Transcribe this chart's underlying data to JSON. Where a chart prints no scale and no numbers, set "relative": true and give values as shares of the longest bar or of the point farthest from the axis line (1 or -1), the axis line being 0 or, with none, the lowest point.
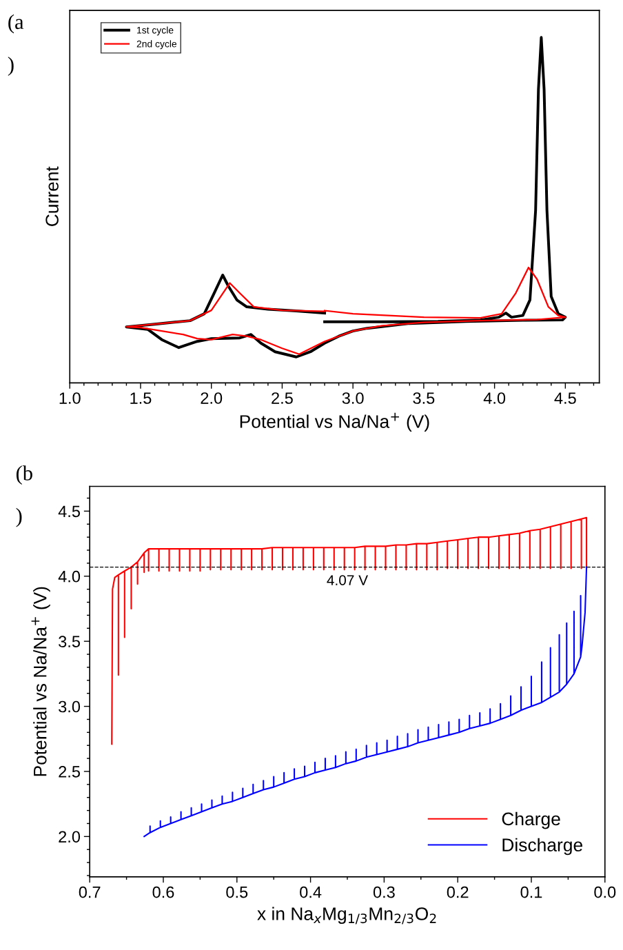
{
  "chart_data": [
    {
      "type": "line",
      "relative": true,
      "xlabel": "Potential vs Na/Na$^{+}$ (V)",
      "ylabel": "Current",
      "annotations": [
        "(a\n)"
      ],
      "xlim": [
        1.0,
        4.74
      ],
      "xticks": [
        {
          "value": 1,
          "label": "1.0"
        },
        1.5,
        {
          "value": 2,
          "label": "2.0"
        },
        2.5,
        {
          "value": 3,
          "label": "3.0"
        },
        3.5,
        {
          "value": 4,
          "label": "4.0"
        },
        4.5
      ],
      "legend": "top left",
      "grid": false,
      "series": [
        {
          "name": "1st cycle",
          "color": "#000000",
          "x": [
            2.8,
            3.2,
            3.6,
            3.9,
            4.03,
            4.08,
            4.12,
            4.2,
            4.25,
            4.29,
            4.31,
            4.33,
            4.35,
            4.37,
            4.4,
            4.45,
            4.5,
            4.48,
            4.2,
            3.8,
            3.4,
            3.1,
            3.0,
            2.9,
            2.8,
            2.7,
            2.6,
            2.45,
            2.35,
            2.28,
            2.2,
            2.0,
            1.9,
            1.77,
            1.65,
            1.55,
            1.4,
            1.6,
            1.85,
            1.95,
            2.02,
            2.08,
            2.12,
            2.18,
            2.25,
            2.4,
            2.6,
            2.8
          ],
          "values": [
            0.177,
            0.177,
            0.178,
            0.182,
            0.19,
            0.202,
            0.19,
            0.195,
            0.24,
            0.5,
            0.85,
            1.0,
            0.85,
            0.5,
            0.25,
            0.2,
            0.19,
            0.182,
            0.181,
            0.178,
            0.172,
            0.158,
            0.15,
            0.135,
            0.115,
            0.09,
            0.075,
            0.09,
            0.115,
            0.14,
            0.13,
            0.128,
            0.12,
            0.102,
            0.125,
            0.155,
            0.162,
            0.17,
            0.18,
            0.2,
            0.26,
            0.312,
            0.28,
            0.24,
            0.22,
            0.213,
            0.208,
            0.202
          ]
        },
        {
          "name": "2nd cycle",
          "color": "#ff0000",
          "x": [
            2.8,
            3.0,
            3.5,
            3.9,
            4.05,
            4.15,
            4.24,
            4.3,
            4.38,
            4.45,
            4.5,
            4.3,
            3.9,
            3.5,
            3.2,
            3.0,
            2.8,
            2.62,
            2.5,
            2.35,
            2.25,
            2.15,
            2.0,
            1.9,
            1.8,
            1.65,
            1.5,
            1.4,
            1.6,
            1.85,
            2.0,
            2.13,
            2.2,
            2.3,
            2.5,
            2.8
          ],
          "values": [
            0.209,
            0.2,
            0.19,
            0.188,
            0.2,
            0.26,
            0.334,
            0.3,
            0.22,
            0.195,
            0.19,
            0.183,
            0.18,
            0.175,
            0.165,
            0.15,
            0.12,
            0.083,
            0.1,
            0.125,
            0.135,
            0.14,
            0.125,
            0.128,
            0.14,
            0.15,
            0.16,
            0.162,
            0.17,
            0.18,
            0.21,
            0.289,
            0.26,
            0.22,
            0.21,
            0.207
          ]
        }
      ]
    },
    {
      "type": "line",
      "xlabel": "x in Na$_{x}$Mg$_{1/3}$Mn$_{2/3}$O$_{2}$",
      "ylabel": "Potential vs Na/Na$^{+}$ (V)",
      "annotations": [
        "(b\n)"
      ],
      "xlim": [
        0.7,
        0.0
      ],
      "xticks": [
        0.7,
        0.6,
        0.5,
        0.4,
        0.3,
        0.2,
        0.1,
        {
          "value": 0,
          "label": "0.0"
        }
      ],
      "ylim": [
        1.69,
        4.69
      ],
      "yticks": [
        {
          "value": 2,
          "label": "2.0"
        },
        2.5,
        {
          "value": 3,
          "label": "3.0"
        },
        3.5,
        {
          "value": 4,
          "label": "4.0"
        },
        4.5
      ],
      "legend": "bottom right",
      "grid": false,
      "ref_lines": [
        {
          "axis": "y",
          "value": 4.07,
          "label": "4.07 V",
          "color": "#000000",
          "line_style": "dashed"
        }
      ],
      "series": [
        {
          "name": "Charge",
          "color": "#ff0000",
          "x": [
            0.67,
            0.669,
            0.666,
            0.661,
            0.661,
            0.661,
            0.6526,
            0.6526,
            0.6526,
            0.6436,
            0.6436,
            0.6436,
            0.635,
            0.635,
            0.635,
            0.626,
            0.626,
            0.626,
            0.62,
            0.62,
            0.62,
            0.606,
            0.606,
            0.606,
            0.592,
            0.592,
            0.592,
            0.578,
            0.578,
            0.578,
            0.564,
            0.564,
            0.564,
            0.55,
            0.55,
            0.55,
            0.536,
            0.536,
            0.536,
            0.522,
            0.522,
            0.522,
            0.508,
            0.508,
            0.508,
            0.494,
            0.494,
            0.494,
            0.48,
            0.48,
            0.48,
            0.466,
            0.466,
            0.466,
            0.452,
            0.452,
            0.452,
            0.438,
            0.438,
            0.438,
            0.424,
            0.424,
            0.424,
            0.41,
            0.41,
            0.41,
            0.396,
            0.396,
            0.396,
            0.382,
            0.382,
            0.382,
            0.368,
            0.368,
            0.368,
            0.354,
            0.354,
            0.354,
            0.34,
            0.34,
            0.34,
            0.326,
            0.326,
            0.326,
            0.312,
            0.312,
            0.312,
            0.298,
            0.298,
            0.298,
            0.284,
            0.284,
            0.284,
            0.27,
            0.27,
            0.27,
            0.256,
            0.256,
            0.256,
            0.242,
            0.242,
            0.242,
            0.228,
            0.228,
            0.228,
            0.214,
            0.214,
            0.214,
            0.2,
            0.2,
            0.2,
            0.186,
            0.186,
            0.186,
            0.172,
            0.172,
            0.172,
            0.158,
            0.158,
            0.158,
            0.144,
            0.144,
            0.144,
            0.13,
            0.13,
            0.13,
            0.116,
            0.116,
            0.116,
            0.102,
            0.102,
            0.102,
            0.088,
            0.088,
            0.088,
            0.074,
            0.074,
            0.074,
            0.06,
            0.06,
            0.06,
            0.046,
            0.046,
            0.046,
            0.032,
            0.032,
            0.032,
            0.025,
            0.025
          ],
          "values": [
            2.71,
            3.9,
            3.99,
            4.01,
            3.24,
            4.01,
            4.04,
            3.53,
            4.04,
            4.07,
            3.75,
            4.07,
            4.11,
            3.94,
            4.11,
            4.18,
            4.03,
            4.18,
            4.21,
            4.04,
            4.21,
            4.21,
            4.04,
            4.21,
            4.21,
            4.04,
            4.21,
            4.21,
            4.04,
            4.21,
            4.21,
            4.04,
            4.21,
            4.21,
            4.04,
            4.21,
            4.21,
            4.05,
            4.21,
            4.21,
            4.05,
            4.21,
            4.21,
            4.05,
            4.21,
            4.21,
            4.05,
            4.21,
            4.21,
            4.05,
            4.21,
            4.21,
            4.05,
            4.21,
            4.22,
            4.05,
            4.22,
            4.22,
            4.05,
            4.22,
            4.22,
            4.05,
            4.22,
            4.22,
            4.05,
            4.22,
            4.22,
            4.05,
            4.22,
            4.22,
            4.05,
            4.22,
            4.22,
            4.05,
            4.22,
            4.22,
            4.05,
            4.22,
            4.22,
            4.05,
            4.22,
            4.23,
            4.05,
            4.23,
            4.23,
            4.05,
            4.23,
            4.23,
            4.05,
            4.23,
            4.24,
            4.05,
            4.24,
            4.24,
            4.05,
            4.24,
            4.25,
            4.05,
            4.25,
            4.25,
            4.05,
            4.25,
            4.26,
            4.05,
            4.26,
            4.27,
            4.06,
            4.27,
            4.28,
            4.06,
            4.28,
            4.29,
            4.06,
            4.29,
            4.3,
            4.06,
            4.3,
            4.3,
            4.06,
            4.3,
            4.31,
            4.06,
            4.31,
            4.32,
            4.06,
            4.32,
            4.33,
            4.06,
            4.33,
            4.35,
            4.06,
            4.35,
            4.36,
            4.06,
            4.36,
            4.38,
            4.06,
            4.38,
            4.4,
            4.06,
            4.4,
            4.42,
            4.06,
            4.42,
            4.44,
            4.06,
            4.44,
            4.45,
            4.06
          ]
        },
        {
          "name": "Discharge",
          "color": "#0000ff",
          "x": [
            0.025,
            0.027,
            0.031,
            0.033,
            0.033,
            0.033,
            0.042,
            0.042,
            0.042,
            0.052,
            0.052,
            0.052,
            0.062,
            0.062,
            0.062,
            0.074,
            0.074,
            0.074,
            0.086,
            0.086,
            0.086,
            0.1,
            0.1,
            0.1,
            0.114,
            0.114,
            0.114,
            0.128,
            0.128,
            0.128,
            0.142,
            0.142,
            0.142,
            0.156,
            0.156,
            0.156,
            0.17,
            0.17,
            0.17,
            0.184,
            0.184,
            0.184,
            0.198,
            0.198,
            0.198,
            0.212,
            0.212,
            0.212,
            0.226,
            0.226,
            0.226,
            0.24,
            0.24,
            0.24,
            0.254,
            0.254,
            0.254,
            0.268,
            0.268,
            0.268,
            0.282,
            0.282,
            0.282,
            0.296,
            0.296,
            0.296,
            0.31,
            0.31,
            0.31,
            0.324,
            0.324,
            0.324,
            0.338,
            0.338,
            0.338,
            0.352,
            0.352,
            0.352,
            0.366,
            0.366,
            0.366,
            0.38,
            0.38,
            0.38,
            0.394,
            0.394,
            0.394,
            0.408,
            0.408,
            0.408,
            0.422,
            0.422,
            0.422,
            0.436,
            0.436,
            0.436,
            0.45,
            0.45,
            0.45,
            0.464,
            0.464,
            0.464,
            0.478,
            0.478,
            0.478,
            0.492,
            0.492,
            0.492,
            0.506,
            0.506,
            0.506,
            0.52,
            0.52,
            0.52,
            0.534,
            0.534,
            0.534,
            0.548,
            0.548,
            0.548,
            0.562,
            0.562,
            0.562,
            0.576,
            0.576,
            0.576,
            0.59,
            0.59,
            0.59,
            0.604,
            0.604,
            0.604,
            0.618,
            0.618,
            0.618,
            0.626
          ],
          "values": [
            4.07,
            3.72,
            3.47,
            3.38,
            3.85,
            3.38,
            3.25,
            3.73,
            3.25,
            3.17,
            3.64,
            3.17,
            3.11,
            3.55,
            3.11,
            3.07,
            3.45,
            3.07,
            3.03,
            3.34,
            3.03,
            3.0,
            3.23,
            3.0,
            2.97,
            3.15,
            2.97,
            2.93,
            3.08,
            2.93,
            2.9,
            3.02,
            2.9,
            2.87,
            2.98,
            2.87,
            2.85,
            2.95,
            2.85,
            2.83,
            2.93,
            2.83,
            2.8,
            2.9,
            2.8,
            2.78,
            2.88,
            2.78,
            2.76,
            2.86,
            2.76,
            2.74,
            2.84,
            2.74,
            2.72,
            2.82,
            2.72,
            2.69,
            2.79,
            2.69,
            2.67,
            2.77,
            2.67,
            2.65,
            2.74,
            2.65,
            2.63,
            2.72,
            2.63,
            2.61,
            2.7,
            2.61,
            2.58,
            2.67,
            2.58,
            2.56,
            2.65,
            2.56,
            2.53,
            2.62,
            2.53,
            2.51,
            2.6,
            2.51,
            2.49,
            2.57,
            2.49,
            2.46,
            2.54,
            2.46,
            2.44,
            2.52,
            2.44,
            2.41,
            2.49,
            2.41,
            2.38,
            2.46,
            2.38,
            2.36,
            2.43,
            2.36,
            2.33,
            2.4,
            2.33,
            2.3,
            2.37,
            2.3,
            2.27,
            2.34,
            2.27,
            2.25,
            2.31,
            2.25,
            2.22,
            2.28,
            2.22,
            2.19,
            2.25,
            2.19,
            2.16,
            2.22,
            2.16,
            2.13,
            2.19,
            2.13,
            2.1,
            2.15,
            2.1,
            2.07,
            2.12,
            2.07,
            2.03,
            2.08,
            2.03,
            2.0
          ]
        }
      ]
    }
  ]
}
